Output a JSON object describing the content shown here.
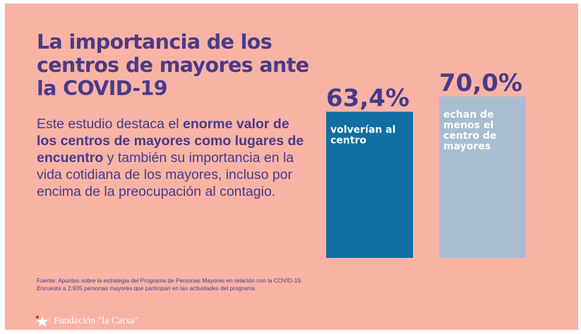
{
  "title": "La importancia de los centros de mayores ante la COVID-19",
  "description": {
    "part1": "Este estudio destaca el ",
    "bold1": "enorme valor de los centros de mayores como lugares de encuentro",
    "part2": " y también su importancia en la vida cotidiana de los mayores, incluso por encima de la preocupación al contagio."
  },
  "source": "Fuente: Apuntes sobre la estrategia del Programa de Personas Mayores en relación con la COVID-19. Encuesta a 2.935 personas mayores que participan en las actividades del programa.",
  "logo": {
    "icon": "star-icon",
    "text": "Fundación \"la Caixa\""
  },
  "chart_data": {
    "type": "bar",
    "categories": [
      "volverían al centro",
      "echan de menos el centro de mayores"
    ],
    "category_lines": [
      [
        "volverían al",
        "centro"
      ],
      [
        "echan de",
        "menos el",
        "centro de",
        "mayores"
      ]
    ],
    "values": [
      63.4,
      70.0
    ],
    "value_labels": [
      "63,4%",
      "70,0%"
    ],
    "colors": [
      "#0f6fa2",
      "#a9bdd1"
    ],
    "ylim": [
      0,
      100
    ],
    "legend": "none",
    "grid": false
  }
}
